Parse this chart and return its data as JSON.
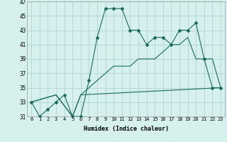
{
  "xlabel": "Humidex (Indice chaleur)",
  "background_color": "#d6f0ee",
  "line_color": "#1a6b5a",
  "xlim": [
    -0.5,
    23.5
  ],
  "ylim": [
    31,
    47
  ],
  "xticks": [
    0,
    1,
    2,
    3,
    4,
    5,
    6,
    7,
    8,
    9,
    10,
    11,
    12,
    13,
    14,
    15,
    16,
    17,
    18,
    19,
    20,
    21,
    22,
    23
  ],
  "yticks": [
    31,
    33,
    35,
    37,
    39,
    41,
    43,
    45,
    47
  ],
  "line1_x": [
    0,
    1,
    2,
    3,
    4,
    5,
    6,
    7,
    8,
    9,
    10,
    11,
    12,
    13,
    14,
    15,
    16,
    17,
    18,
    19,
    20,
    21,
    22,
    23
  ],
  "line1_y": [
    33,
    31,
    32,
    33,
    34,
    31,
    31,
    36,
    42,
    46,
    46,
    46,
    43,
    43,
    41,
    42,
    42,
    41,
    43,
    43,
    44,
    39,
    35,
    35
  ],
  "line2_x": [
    0,
    3,
    5,
    6,
    23
  ],
  "line2_y": [
    33,
    34,
    31,
    34,
    35
  ],
  "line3_x": [
    0,
    3,
    5,
    6,
    7,
    8,
    9,
    10,
    11,
    12,
    13,
    14,
    15,
    16,
    17,
    18,
    19,
    20,
    21,
    22,
    23
  ],
  "line3_y": [
    33,
    34,
    31,
    34,
    35,
    36,
    37,
    38,
    38,
    38,
    39,
    39,
    39,
    40,
    41,
    41,
    42,
    39,
    39,
    39,
    35
  ]
}
